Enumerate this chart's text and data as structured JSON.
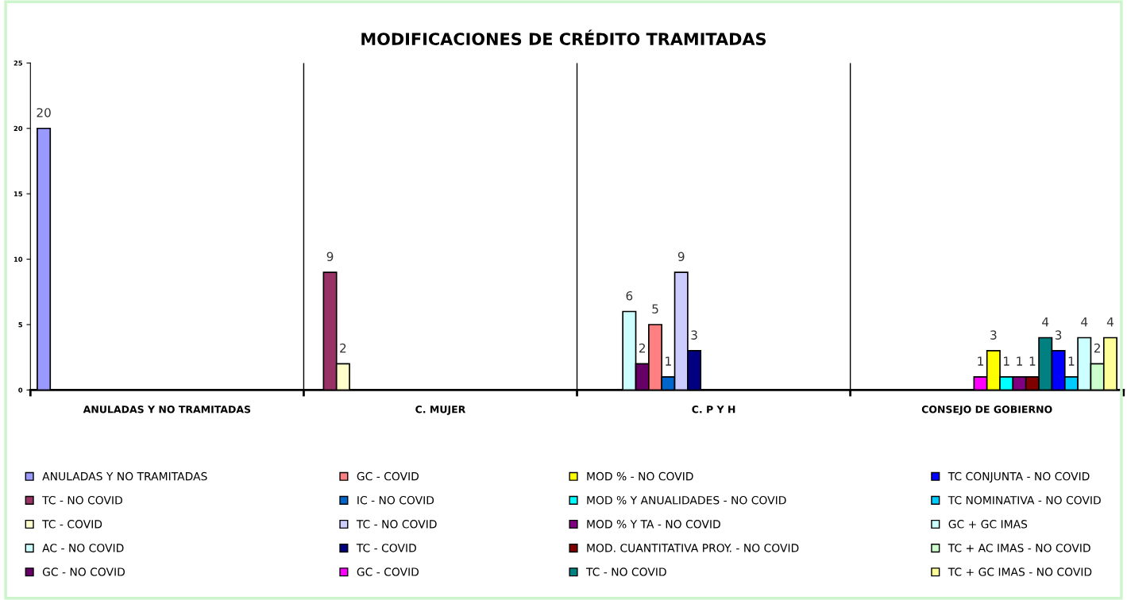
{
  "chart_data": {
    "type": "bar",
    "title": "MODIFICACIONES DE CRÉDITO TRAMITADAS",
    "categories": [
      "ANULADAS Y NO TRAMITADAS",
      "C. MUJER",
      "C. P Y H",
      "CONSEJO DE GOBIERNO"
    ],
    "series": [
      {
        "name": "ANULADAS Y NO TRAMITADAS",
        "color": "#9999ff",
        "values": [
          20,
          null,
          null,
          null
        ]
      },
      {
        "name": "TC - NO COVID",
        "color": "#993366",
        "values": [
          null,
          9,
          null,
          null
        ]
      },
      {
        "name": "TC - COVID",
        "color": "#ffffcc",
        "values": [
          null,
          2,
          null,
          null
        ]
      },
      {
        "name": "AC - NO COVID",
        "color": "#ccffff",
        "values": [
          null,
          null,
          6,
          null
        ]
      },
      {
        "name": "GC - NO COVID",
        "color": "#660066",
        "values": [
          null,
          null,
          2,
          null
        ]
      },
      {
        "name": "GC - COVID",
        "color": "#ff8080",
        "values": [
          null,
          null,
          5,
          null
        ]
      },
      {
        "name": "IC - NO COVID",
        "color": "#0066cc",
        "values": [
          null,
          null,
          1,
          null
        ]
      },
      {
        "name": "TC - NO COVID",
        "color": "#ccccff",
        "values": [
          null,
          null,
          9,
          null
        ]
      },
      {
        "name": "TC - COVID",
        "color": "#000080",
        "values": [
          null,
          null,
          3,
          null
        ]
      },
      {
        "name": "GC - COVID",
        "color": "#ff00ff",
        "values": [
          null,
          null,
          null,
          1
        ]
      },
      {
        "name": "MOD % - NO COVID",
        "color": "#ffff00",
        "values": [
          null,
          null,
          null,
          3
        ]
      },
      {
        "name": "MOD % Y ANUALIDADES - NO COVID",
        "color": "#00ffff",
        "values": [
          null,
          null,
          null,
          1
        ]
      },
      {
        "name": "MOD % Y TA - NO COVID",
        "color": "#800080",
        "values": [
          null,
          null,
          null,
          1
        ]
      },
      {
        "name": "MOD. CUANTITATIVA PROY. - NO COVID",
        "color": "#800000",
        "values": [
          null,
          null,
          null,
          1
        ]
      },
      {
        "name": "TC - NO COVID",
        "color": "#008080",
        "values": [
          null,
          null,
          null,
          4
        ]
      },
      {
        "name": "TC CONJUNTA - NO COVID",
        "color": "#0000ff",
        "values": [
          null,
          null,
          null,
          3
        ]
      },
      {
        "name": "TC NOMINATIVA - NO COVID",
        "color": "#00ccff",
        "values": [
          null,
          null,
          null,
          1
        ]
      },
      {
        "name": "GC + GC IMAS",
        "color": "#ccffff",
        "values": [
          null,
          null,
          null,
          4
        ]
      },
      {
        "name": "TC + AC IMAS - NO COVID",
        "color": "#ccffcc",
        "values": [
          null,
          null,
          null,
          2
        ]
      },
      {
        "name": "TC + GC IMAS - NO COVID",
        "color": "#ffff99",
        "values": [
          null,
          null,
          null,
          4
        ]
      }
    ],
    "ylim": [
      0,
      25
    ],
    "yticks": [
      0,
      5,
      10,
      15,
      20,
      25
    ],
    "grid": "x",
    "legend": "bottom",
    "data_labels": true
  }
}
